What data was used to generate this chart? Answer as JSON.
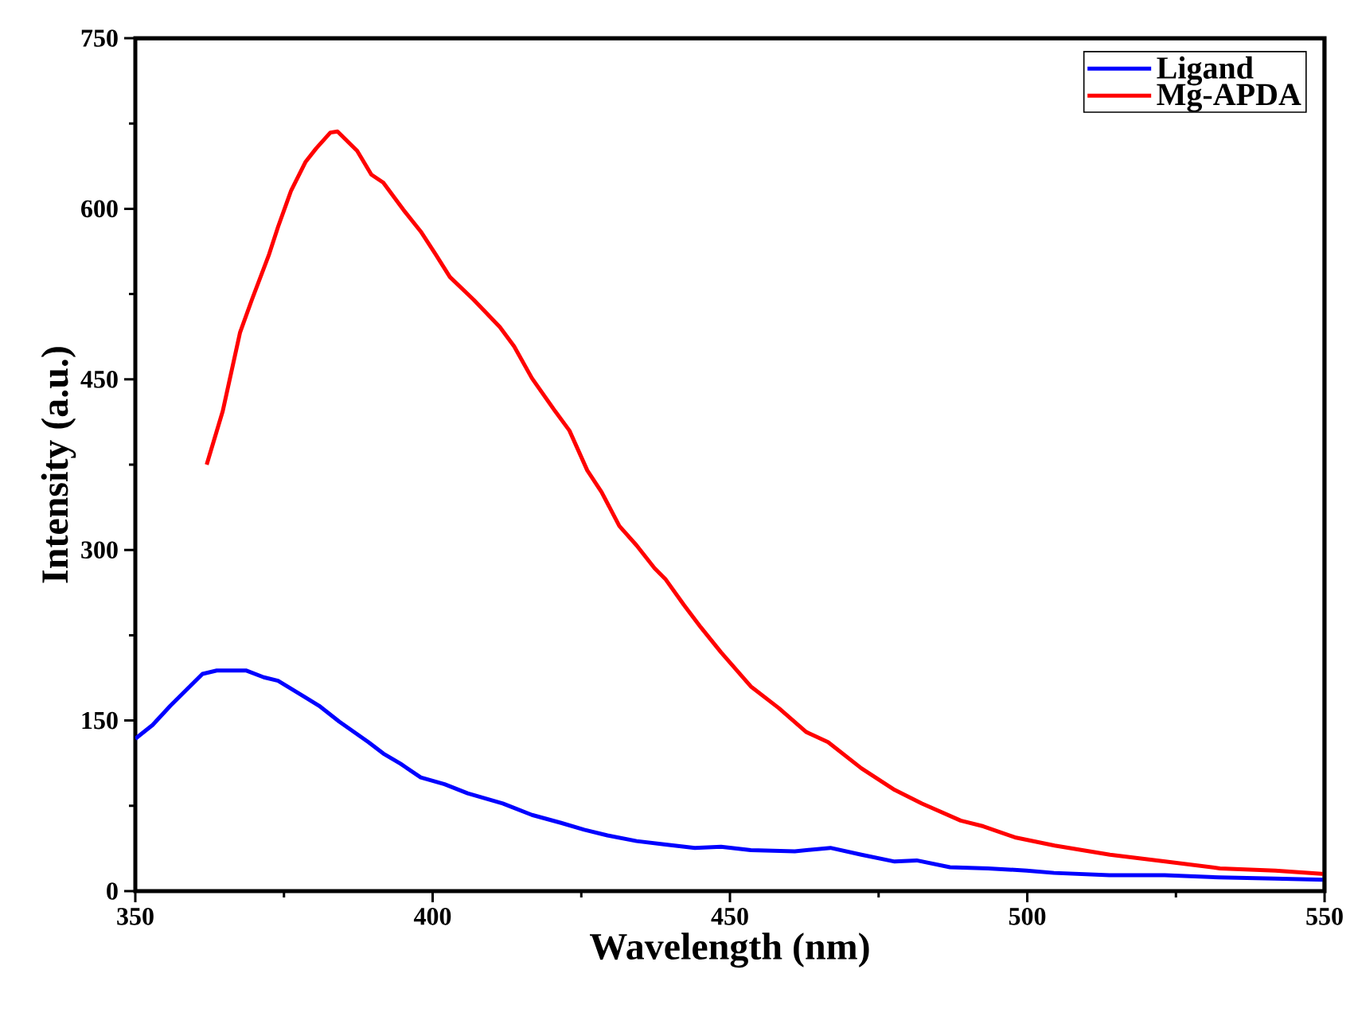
{
  "chart_data": {
    "type": "line",
    "xlabel": "Wavelength (nm)",
    "ylabel": "Intensity (a.u.)",
    "xlim": [
      350,
      550
    ],
    "ylim": [
      0,
      750
    ],
    "xticks": [
      350,
      400,
      450,
      500,
      550
    ],
    "yticks": [
      0,
      150,
      300,
      450,
      600,
      750
    ],
    "legend": "top right",
    "line_style": "solid",
    "marker": "none",
    "grid": false,
    "series": [
      {
        "name": "Ligand",
        "color": "#0000ff",
        "x": [
          350,
          352.9,
          355.9,
          358.8,
          361.3,
          363.7,
          368.6,
          371.6,
          374,
          378.4,
          380.9,
          384.3,
          389.2,
          391.7,
          394.6,
          398,
          402,
          405.9,
          411.8,
          416.7,
          421.6,
          425.5,
          429.4,
          434.3,
          439.2,
          444.1,
          448.5,
          453.5,
          460.9,
          466.9,
          472.1,
          477.7,
          481.4,
          487,
          493.4,
          499.9,
          504.5,
          513.8,
          523.1,
          532.3,
          541.6,
          550
        ],
        "values": [
          134,
          146,
          163,
          178,
          191,
          194,
          194,
          188,
          185,
          171,
          163,
          149,
          131,
          121,
          112,
          100,
          94,
          86,
          77,
          67,
          60,
          54,
          49,
          44,
          41,
          38,
          39,
          36,
          35,
          38,
          32,
          26,
          27,
          21,
          20,
          18,
          16,
          14,
          14,
          12,
          11,
          10
        ]
      },
      {
        "name": "Mg-APDA",
        "color": "#ff0000",
        "x": [
          362,
          364.7,
          367.6,
          369.6,
          372.5,
          374,
          376.2,
          378.6,
          380.4,
          382.8,
          384,
          387.3,
          389.7,
          391.7,
          395.1,
          398,
          400.5,
          402.9,
          406.9,
          411.3,
          413.7,
          416.7,
          420.6,
          423,
          426,
          428.4,
          431.4,
          434.3,
          437.3,
          439.2,
          442.2,
          445.1,
          448.5,
          453.5,
          458.2,
          462.8,
          466.5,
          472.1,
          477.7,
          482.3,
          488.8,
          492.6,
          498.1,
          504.6,
          513.9,
          523.2,
          532.4,
          541.7,
          550
        ],
        "values": [
          375,
          422,
          491,
          520,
          560,
          584,
          616,
          641,
          653,
          667,
          668,
          651,
          630,
          623,
          599,
          580,
          560,
          540,
          520,
          496,
          479,
          451,
          422,
          405,
          370,
          351,
          321,
          304,
          284,
          274,
          252,
          232,
          210,
          180,
          161,
          140,
          131,
          108,
          89,
          77,
          62,
          57,
          47,
          40,
          32,
          26,
          20,
          18,
          15
        ]
      }
    ]
  }
}
